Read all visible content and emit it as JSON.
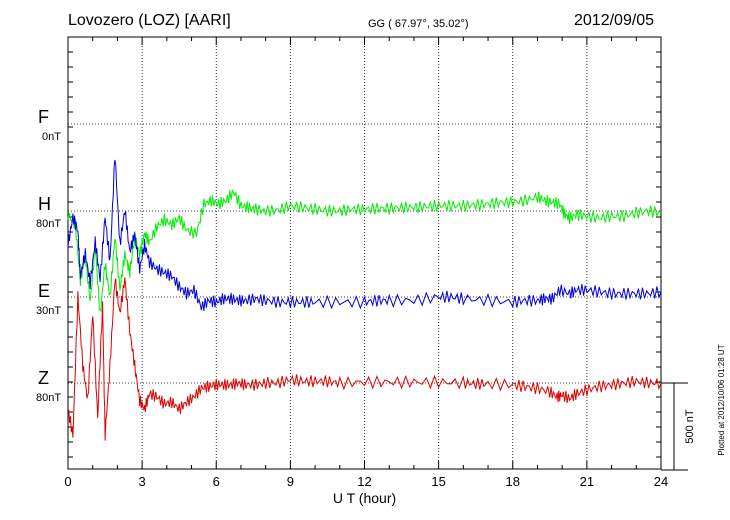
{
  "header": {
    "station": "Lovozero (LOZ)  [AARI]",
    "coords": "GG ( 67.97°,  35.02°)",
    "date": "2012/09/05"
  },
  "footer": {
    "plotted": "Plotted at 2012/10/06 01:28 UT",
    "scale": "500 nT"
  },
  "chart_data": {
    "type": "line",
    "xlabel": "U T (hour)",
    "xlim": [
      0,
      24
    ],
    "xticks": [
      0,
      3,
      6,
      9,
      12,
      15,
      18,
      21,
      24
    ],
    "scale_bar_nT": 500,
    "grid": true,
    "series": [
      {
        "name": "F",
        "offset_label": "0nT",
        "color": "#ffa500",
        "points": []
      },
      {
        "name": "H",
        "offset_label": "80nT",
        "color": "#00ee00",
        "points": [
          [
            0,
            -20
          ],
          [
            0.3,
            -80
          ],
          [
            0.5,
            -400
          ],
          [
            0.7,
            -250
          ],
          [
            0.9,
            -520
          ],
          [
            1.1,
            -200
          ],
          [
            1.3,
            -600
          ],
          [
            1.5,
            -300
          ],
          [
            1.7,
            -500
          ],
          [
            1.9,
            -150
          ],
          [
            2.1,
            -450
          ],
          [
            2.3,
            -250
          ],
          [
            2.5,
            -350
          ],
          [
            2.7,
            -150
          ],
          [
            2.9,
            -250
          ],
          [
            3.1,
            -130
          ],
          [
            3.3,
            -180
          ],
          [
            3.6,
            -90
          ],
          [
            3.9,
            -50
          ],
          [
            4.2,
            -80
          ],
          [
            4.5,
            -40
          ],
          [
            4.8,
            -110
          ],
          [
            5.2,
            -130
          ],
          [
            5.5,
            40
          ],
          [
            5.8,
            60
          ],
          [
            6.1,
            40
          ],
          [
            6.4,
            60
          ],
          [
            6.7,
            110
          ],
          [
            7.0,
            30
          ],
          [
            7.3,
            20
          ],
          [
            7.6,
            10
          ],
          [
            8.0,
            0
          ],
          [
            8.5,
            5
          ],
          [
            9.0,
            30
          ],
          [
            9.5,
            20
          ],
          [
            10.0,
            10
          ],
          [
            10.5,
            0
          ],
          [
            11.0,
            0
          ],
          [
            11.5,
            10
          ],
          [
            12.0,
            10
          ],
          [
            12.5,
            15
          ],
          [
            13.0,
            15
          ],
          [
            13.5,
            20
          ],
          [
            14.0,
            20
          ],
          [
            14.5,
            25
          ],
          [
            15.0,
            30
          ],
          [
            15.5,
            30
          ],
          [
            16.0,
            30
          ],
          [
            16.5,
            35
          ],
          [
            17.0,
            40
          ],
          [
            17.5,
            50
          ],
          [
            18.0,
            50
          ],
          [
            18.5,
            60
          ],
          [
            19.0,
            80
          ],
          [
            19.3,
            60
          ],
          [
            19.6,
            50
          ],
          [
            19.9,
            40
          ],
          [
            20.1,
            -20
          ],
          [
            20.3,
            -40
          ],
          [
            20.6,
            -20
          ],
          [
            21.0,
            -30
          ],
          [
            21.5,
            -40
          ],
          [
            22.0,
            -30
          ],
          [
            22.5,
            -30
          ],
          [
            23.0,
            -10
          ],
          [
            23.5,
            0
          ],
          [
            24.0,
            -10
          ]
        ]
      },
      {
        "name": "E",
        "offset_label": "30nT",
        "color": "#0000dd",
        "points": [
          [
            0,
            300
          ],
          [
            0.2,
            460
          ],
          [
            0.4,
            380
          ],
          [
            0.5,
            120
          ],
          [
            0.7,
            250
          ],
          [
            0.9,
            80
          ],
          [
            1.1,
            320
          ],
          [
            1.3,
            100
          ],
          [
            1.5,
            460
          ],
          [
            1.7,
            200
          ],
          [
            1.9,
            820
          ],
          [
            2.1,
            300
          ],
          [
            2.3,
            500
          ],
          [
            2.5,
            260
          ],
          [
            2.7,
            360
          ],
          [
            2.9,
            160
          ],
          [
            3.1,
            300
          ],
          [
            3.3,
            200
          ],
          [
            3.6,
            160
          ],
          [
            3.9,
            140
          ],
          [
            4.2,
            120
          ],
          [
            4.5,
            60
          ],
          [
            4.8,
            20
          ],
          [
            5.1,
            40
          ],
          [
            5.4,
            -60
          ],
          [
            5.7,
            -20
          ],
          [
            6.0,
            -30
          ],
          [
            6.3,
            -10
          ],
          [
            6.6,
            -10
          ],
          [
            6.9,
            -20
          ],
          [
            7.2,
            -20
          ],
          [
            7.6,
            -10
          ],
          [
            8.0,
            -20
          ],
          [
            8.5,
            -30
          ],
          [
            9.0,
            -30
          ],
          [
            9.5,
            -30
          ],
          [
            10.0,
            -30
          ],
          [
            11.0,
            -30
          ],
          [
            12.0,
            -30
          ],
          [
            12.5,
            -20
          ],
          [
            13.0,
            -20
          ],
          [
            14.0,
            -20
          ],
          [
            15.0,
            0
          ],
          [
            15.5,
            0
          ],
          [
            16.0,
            -10
          ],
          [
            17.0,
            -20
          ],
          [
            18.0,
            -30
          ],
          [
            18.5,
            -20
          ],
          [
            19.0,
            -20
          ],
          [
            19.3,
            -10
          ],
          [
            19.6,
            -10
          ],
          [
            19.9,
            40
          ],
          [
            20.3,
            20
          ],
          [
            20.6,
            40
          ],
          [
            21.0,
            40
          ],
          [
            21.5,
            30
          ],
          [
            22.0,
            20
          ],
          [
            22.5,
            20
          ],
          [
            23.0,
            20
          ],
          [
            23.5,
            20
          ],
          [
            24.0,
            30
          ]
        ]
      },
      {
        "name": "Z",
        "offset_label": "80nT",
        "color": "#dd0000",
        "points": [
          [
            0,
            -150
          ],
          [
            0.2,
            -300
          ],
          [
            0.4,
            500
          ],
          [
            0.6,
            100
          ],
          [
            0.8,
            -100
          ],
          [
            1.0,
            400
          ],
          [
            1.2,
            -200
          ],
          [
            1.4,
            450
          ],
          [
            1.5,
            -300
          ],
          [
            1.7,
            100
          ],
          [
            1.9,
            600
          ],
          [
            2.1,
            400
          ],
          [
            2.3,
            600
          ],
          [
            2.5,
            300
          ],
          [
            2.7,
            100
          ],
          [
            2.9,
            -100
          ],
          [
            3.1,
            -150
          ],
          [
            3.3,
            -60
          ],
          [
            3.6,
            -80
          ],
          [
            3.9,
            -120
          ],
          [
            4.2,
            -110
          ],
          [
            4.5,
            -150
          ],
          [
            4.8,
            -110
          ],
          [
            5.1,
            -80
          ],
          [
            5.4,
            -30
          ],
          [
            5.7,
            -20
          ],
          [
            6.0,
            -10
          ],
          [
            6.3,
            -10
          ],
          [
            6.6,
            -10
          ],
          [
            6.9,
            0
          ],
          [
            7.2,
            -10
          ],
          [
            7.6,
            -10
          ],
          [
            8.0,
            0
          ],
          [
            8.5,
            0
          ],
          [
            9.0,
            20
          ],
          [
            9.5,
            10
          ],
          [
            10.0,
            10
          ],
          [
            10.5,
            10
          ],
          [
            11.0,
            0
          ],
          [
            12.0,
            5
          ],
          [
            13.0,
            5
          ],
          [
            14.0,
            5
          ],
          [
            15.0,
            5
          ],
          [
            16.0,
            0
          ],
          [
            16.5,
            -5
          ],
          [
            17.0,
            -5
          ],
          [
            18.0,
            -10
          ],
          [
            18.5,
            -20
          ],
          [
            19.0,
            -30
          ],
          [
            19.5,
            -50
          ],
          [
            19.8,
            -80
          ],
          [
            20.0,
            -70
          ],
          [
            20.3,
            -90
          ],
          [
            20.6,
            -60
          ],
          [
            21.0,
            -40
          ],
          [
            21.5,
            -20
          ],
          [
            22.0,
            -10
          ],
          [
            22.5,
            0
          ],
          [
            23.0,
            10
          ],
          [
            23.5,
            0
          ],
          [
            24.0,
            0
          ]
        ]
      }
    ]
  }
}
